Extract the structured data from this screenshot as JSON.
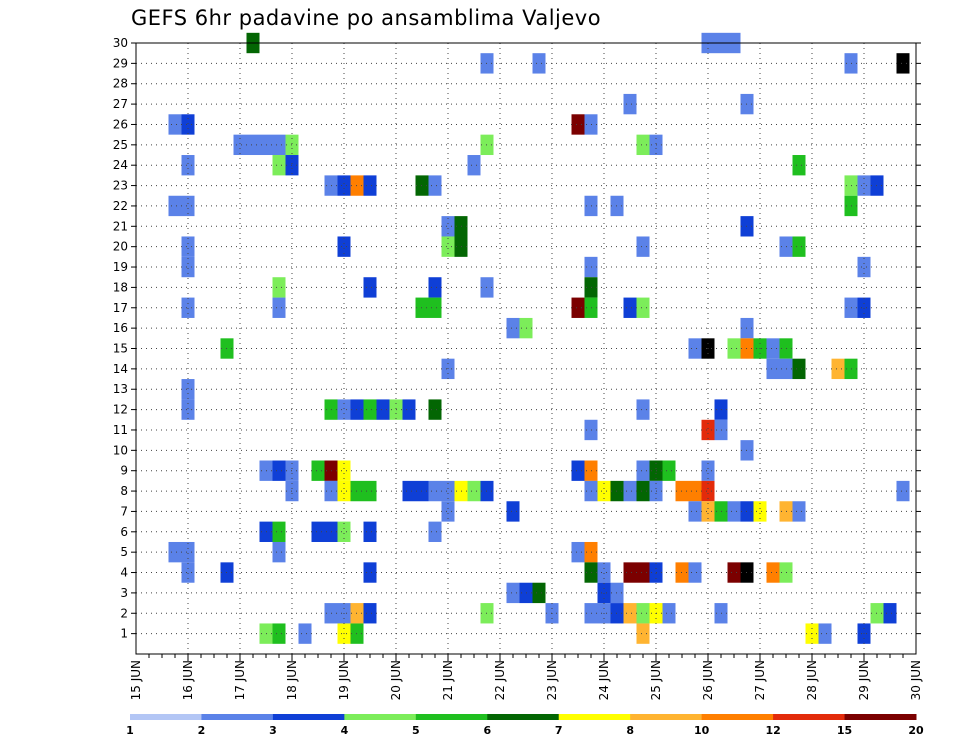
{
  "chart_data": {
    "type": "heatmap",
    "title": "GEFS 6hr padavine po ansamblima Valjevo",
    "x_ticks": [
      "15 JUN",
      "16 JUN",
      "17 JUN",
      "18 JUN",
      "19 JUN",
      "20 JUN",
      "21 JUN",
      "22 JUN",
      "23 JUN",
      "24 JUN",
      "25 JUN",
      "26 JUN",
      "27 JUN",
      "28 JUN",
      "29 JUN",
      "30 JUN"
    ],
    "y_ticks": [
      1,
      2,
      3,
      4,
      5,
      6,
      7,
      8,
      9,
      10,
      11,
      12,
      13,
      14,
      15,
      16,
      17,
      18,
      19,
      20,
      21,
      22,
      23,
      24,
      25,
      26,
      27,
      28,
      29,
      30
    ],
    "x_range": [
      "15 JUN 00Z",
      "30 JUN 00Z"
    ],
    "y_range": [
      0,
      30
    ],
    "grid": true,
    "colorbar": {
      "labels": [
        "1",
        "2",
        "3",
        "4",
        "5",
        "6",
        "7",
        "8",
        "10",
        "12",
        "15",
        "20"
      ],
      "colors": [
        "#b3c6f5",
        "#5b82e8",
        "#0f3fd6",
        "#7ced5a",
        "#1fbf1f",
        "#036603",
        "#ffff00",
        "#ffb431",
        "#ff7f00",
        "#e32b0b",
        "#7b0000"
      ]
    },
    "cells": [
      [
        2.25,
        30,
        5
      ],
      [
        11.0,
        30,
        1
      ],
      [
        11.25,
        30,
        1
      ],
      [
        11.5,
        30,
        1
      ],
      [
        6.75,
        29,
        1
      ],
      [
        7.75,
        29,
        1
      ],
      [
        13.75,
        29,
        1
      ],
      [
        14.75,
        29,
        11
      ],
      [
        8.75,
        26,
        1
      ],
      [
        8.5,
        26,
        10
      ],
      [
        0.75,
        26,
        1
      ],
      [
        1.0,
        26,
        2
      ],
      [
        2.0,
        25,
        1
      ],
      [
        2.25,
        25,
        1
      ],
      [
        2.5,
        25,
        1
      ],
      [
        2.75,
        25,
        1
      ],
      [
        3.0,
        25,
        3
      ],
      [
        6.75,
        25,
        3
      ],
      [
        9.75,
        25,
        3
      ],
      [
        10.0,
        25,
        1
      ],
      [
        9.5,
        27,
        1
      ],
      [
        11.75,
        27,
        1
      ],
      [
        1.0,
        24,
        1
      ],
      [
        2.75,
        24,
        3
      ],
      [
        3.0,
        24,
        2
      ],
      [
        6.5,
        24,
        1
      ],
      [
        12.75,
        24,
        4
      ],
      [
        3.75,
        23,
        1
      ],
      [
        4.0,
        23,
        2
      ],
      [
        4.25,
        23,
        8
      ],
      [
        4.5,
        23,
        2
      ],
      [
        5.5,
        23,
        5
      ],
      [
        5.75,
        23,
        1
      ],
      [
        13.75,
        23,
        3
      ],
      [
        14.0,
        23,
        1
      ],
      [
        14.25,
        23,
        2
      ],
      [
        0.75,
        22,
        1
      ],
      [
        1.0,
        22,
        1
      ],
      [
        8.75,
        22,
        1
      ],
      [
        9.25,
        22,
        1
      ],
      [
        13.75,
        22,
        4
      ],
      [
        6.0,
        21,
        1
      ],
      [
        6.25,
        21,
        5
      ],
      [
        11.75,
        21,
        2
      ],
      [
        1.0,
        20,
        1
      ],
      [
        4.0,
        20,
        2
      ],
      [
        6.0,
        20,
        3
      ],
      [
        6.25,
        20,
        5
      ],
      [
        9.75,
        20,
        1
      ],
      [
        12.5,
        20,
        1
      ],
      [
        12.75,
        20,
        4
      ],
      [
        1.0,
        19,
        1
      ],
      [
        8.75,
        19,
        1
      ],
      [
        14.0,
        19,
        1
      ],
      [
        2.75,
        18,
        3
      ],
      [
        4.5,
        18,
        2
      ],
      [
        5.75,
        18,
        2
      ],
      [
        6.75,
        18,
        1
      ],
      [
        8.75,
        18,
        5
      ],
      [
        1.0,
        17,
        1
      ],
      [
        2.75,
        17,
        1
      ],
      [
        5.5,
        17,
        4
      ],
      [
        5.75,
        17,
        4
      ],
      [
        8.5,
        17,
        10
      ],
      [
        8.75,
        17,
        4
      ],
      [
        9.5,
        17,
        2
      ],
      [
        9.75,
        17,
        3
      ],
      [
        13.75,
        17,
        1
      ],
      [
        14.0,
        17,
        2
      ],
      [
        7.25,
        16,
        1
      ],
      [
        7.5,
        16,
        3
      ],
      [
        11.75,
        16,
        1
      ],
      [
        1.75,
        15,
        4
      ],
      [
        10.75,
        15,
        1
      ],
      [
        11.0,
        15,
        11
      ],
      [
        11.5,
        15,
        3
      ],
      [
        11.75,
        15,
        8
      ],
      [
        12.0,
        15,
        4
      ],
      [
        12.25,
        15,
        1
      ],
      [
        12.5,
        15,
        4
      ],
      [
        6.0,
        14,
        1
      ],
      [
        12.25,
        14,
        1
      ],
      [
        12.5,
        14,
        1
      ],
      [
        12.75,
        14,
        5
      ],
      [
        13.5,
        14,
        7
      ],
      [
        13.75,
        14,
        4
      ],
      [
        1.0,
        13,
        1
      ],
      [
        1.0,
        12,
        1
      ],
      [
        3.75,
        12,
        4
      ],
      [
        4.0,
        12,
        1
      ],
      [
        4.25,
        12,
        2
      ],
      [
        4.5,
        12,
        4
      ],
      [
        4.75,
        12,
        2
      ],
      [
        5.0,
        12,
        3
      ],
      [
        5.25,
        12,
        2
      ],
      [
        5.75,
        12,
        5
      ],
      [
        9.75,
        12,
        1
      ],
      [
        11.25,
        12,
        2
      ],
      [
        8.75,
        11,
        1
      ],
      [
        11.0,
        11,
        9
      ],
      [
        11.25,
        11,
        1
      ],
      [
        11.75,
        10,
        1
      ],
      [
        2.5,
        9,
        1
      ],
      [
        2.75,
        9,
        2
      ],
      [
        3.0,
        9,
        1
      ],
      [
        3.5,
        9,
        4
      ],
      [
        3.75,
        9,
        10
      ],
      [
        4.0,
        9,
        6
      ],
      [
        8.5,
        9,
        2
      ],
      [
        8.75,
        9,
        8
      ],
      [
        9.75,
        9,
        1
      ],
      [
        10.0,
        9,
        5
      ],
      [
        10.25,
        9,
        4
      ],
      [
        11.0,
        9,
        1
      ],
      [
        3.0,
        8,
        1
      ],
      [
        3.75,
        8,
        1
      ],
      [
        4.0,
        8,
        6
      ],
      [
        4.25,
        8,
        4
      ],
      [
        4.5,
        8,
        4
      ],
      [
        5.25,
        8,
        2
      ],
      [
        5.5,
        8,
        2
      ],
      [
        5.75,
        8,
        1
      ],
      [
        6.0,
        8,
        1
      ],
      [
        6.25,
        8,
        6
      ],
      [
        6.5,
        8,
        3
      ],
      [
        6.75,
        8,
        2
      ],
      [
        8.75,
        8,
        1
      ],
      [
        9.0,
        8,
        6
      ],
      [
        9.25,
        8,
        5
      ],
      [
        9.5,
        8,
        1
      ],
      [
        9.75,
        8,
        5
      ],
      [
        10.0,
        8,
        1
      ],
      [
        10.5,
        8,
        8
      ],
      [
        10.75,
        8,
        8
      ],
      [
        11.0,
        8,
        9
      ],
      [
        14.75,
        8,
        1
      ],
      [
        6.0,
        7,
        1
      ],
      [
        7.25,
        7,
        2
      ],
      [
        10.75,
        7,
        1
      ],
      [
        11.0,
        7,
        7
      ],
      [
        11.25,
        7,
        4
      ],
      [
        11.5,
        7,
        1
      ],
      [
        11.75,
        7,
        2
      ],
      [
        12.0,
        7,
        6
      ],
      [
        12.5,
        7,
        7
      ],
      [
        12.75,
        7,
        1
      ],
      [
        2.5,
        6,
        2
      ],
      [
        2.75,
        6,
        4
      ],
      [
        3.5,
        6,
        2
      ],
      [
        3.75,
        6,
        2
      ],
      [
        4.0,
        6,
        3
      ],
      [
        4.5,
        6,
        2
      ],
      [
        5.75,
        6,
        1
      ],
      [
        0.75,
        5,
        1
      ],
      [
        1.0,
        5,
        1
      ],
      [
        2.75,
        5,
        1
      ],
      [
        8.5,
        5,
        1
      ],
      [
        8.75,
        5,
        8
      ],
      [
        1.0,
        4,
        1
      ],
      [
        1.75,
        4,
        2
      ],
      [
        4.5,
        4,
        2
      ],
      [
        8.75,
        4,
        5
      ],
      [
        9.0,
        4,
        1
      ],
      [
        9.5,
        4,
        10
      ],
      [
        9.75,
        4,
        10
      ],
      [
        10.0,
        4,
        2
      ],
      [
        10.5,
        4,
        8
      ],
      [
        10.75,
        4,
        1
      ],
      [
        11.5,
        4,
        10
      ],
      [
        11.75,
        4,
        11
      ],
      [
        12.25,
        4,
        8
      ],
      [
        12.5,
        4,
        3
      ],
      [
        7.25,
        3,
        1
      ],
      [
        7.5,
        3,
        2
      ],
      [
        7.75,
        3,
        5
      ],
      [
        9.0,
        3,
        2
      ],
      [
        9.25,
        3,
        1
      ],
      [
        3.75,
        2,
        1
      ],
      [
        4.0,
        2,
        1
      ],
      [
        4.25,
        2,
        7
      ],
      [
        4.5,
        2,
        2
      ],
      [
        6.75,
        2,
        3
      ],
      [
        8.0,
        2,
        1
      ],
      [
        8.75,
        2,
        1
      ],
      [
        9.0,
        2,
        1
      ],
      [
        9.25,
        2,
        2
      ],
      [
        9.5,
        2,
        7
      ],
      [
        9.75,
        2,
        3
      ],
      [
        10.0,
        2,
        6
      ],
      [
        10.25,
        2,
        1
      ],
      [
        11.25,
        2,
        1
      ],
      [
        14.25,
        2,
        3
      ],
      [
        14.5,
        2,
        2
      ],
      [
        2.5,
        1,
        3
      ],
      [
        2.75,
        1,
        4
      ],
      [
        3.25,
        1,
        1
      ],
      [
        4.0,
        1,
        6
      ],
      [
        4.25,
        1,
        4
      ],
      [
        9.75,
        1,
        7
      ],
      [
        13.0,
        1,
        6
      ],
      [
        13.25,
        1,
        1
      ],
      [
        14.0,
        1,
        2
      ]
    ]
  }
}
